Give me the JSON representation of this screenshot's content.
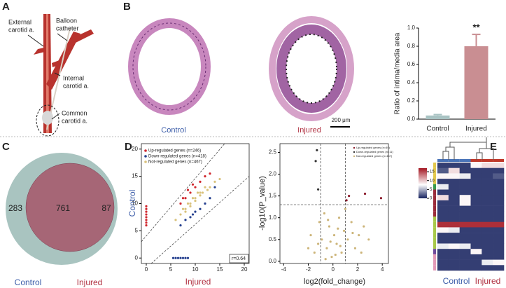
{
  "panel_labels": [
    "A",
    "B",
    "C",
    "D",
    "E"
  ],
  "diagram": {
    "labels": [
      [
        "External",
        "carotid a."
      ],
      [
        "Balloon",
        "catheter"
      ],
      [
        "Internal",
        "carotid a."
      ],
      [
        "Common",
        "carotid a."
      ]
    ]
  },
  "histology": {
    "labels": [
      "Control",
      "Injured"
    ],
    "scale_bar": "200 μm"
  },
  "bar_chart": {
    "type": "bar",
    "ylabel": "Ratio of intima/media area",
    "categories": [
      "Control",
      "Injured"
    ],
    "values": [
      0.04,
      0.8
    ],
    "errors": [
      0.01,
      0.13
    ],
    "colors": [
      "#a9c3c3",
      "#c98e92"
    ],
    "annotation": "**",
    "ylim": [
      0,
      1
    ],
    "yticks": [
      {
        "value": 0,
        "label": "0.0"
      },
      {
        "value": 0.2,
        "label": "0.2"
      },
      {
        "value": 0.4,
        "label": "0.4"
      },
      {
        "value": 0.6,
        "label": "0.6"
      },
      {
        "value": 0.8,
        "label": "0.8"
      },
      {
        "value": 1,
        "label": "1.0"
      }
    ]
  },
  "venn": {
    "sets": [
      {
        "name": "Control",
        "only": 283,
        "color": "#a9c4c0"
      },
      {
        "name": "Injured",
        "only": 87,
        "color": "#d8a5ab"
      }
    ],
    "both": 761,
    "both_color": "#9e5a6c"
  },
  "scatter": {
    "type": "scatter",
    "xlabel": "Injured",
    "ylabel": "Control",
    "annotation": "r=0.64",
    "xlim": [
      -1,
      21
    ],
    "ylim": [
      -1,
      21
    ],
    "xticks": [
      0,
      5,
      10,
      15,
      20
    ],
    "yticks": [
      0,
      5,
      10,
      15,
      20
    ],
    "series": [
      {
        "name": "Up-regulated genes (n=246)",
        "color": "#d0272e",
        "x": [
          0,
          0,
          0,
          0,
          0,
          0,
          0,
          0,
          7,
          8,
          9,
          10,
          8.5,
          11,
          12,
          9.5,
          13,
          7.5
        ],
        "y": [
          6,
          6.5,
          7,
          7.5,
          8,
          8.5,
          9,
          9.5,
          10,
          11,
          12,
          13,
          12.5,
          14,
          15,
          13.5,
          15.5,
          11
        ]
      },
      {
        "name": "Down-regulated genes (n=418)",
        "color": "#25408f",
        "x": [
          5.5,
          6,
          6.5,
          7,
          7.5,
          8,
          8.5,
          7,
          8,
          9,
          10,
          11,
          12,
          13,
          14,
          9.5
        ],
        "y": [
          0,
          0,
          0,
          0,
          0,
          0,
          0,
          6,
          7,
          7.5,
          8.5,
          9,
          10,
          11,
          13,
          8
        ]
      },
      {
        "name": "Not-regulated genes (n=467)",
        "color": "#d9c27c",
        "x": [
          6,
          7,
          7.5,
          8,
          8.5,
          9,
          9.5,
          10,
          10.5,
          11,
          11.5,
          12,
          12.5,
          13,
          14,
          15,
          8,
          9,
          10,
          11
        ],
        "y": [
          7,
          8,
          9,
          8.5,
          10,
          10,
          11,
          10.5,
          12,
          11.5,
          12,
          13,
          12.5,
          13,
          14,
          14.5,
          9,
          9.5,
          11,
          12
        ]
      }
    ]
  },
  "volcano": {
    "type": "scatter",
    "xlabel": "log2(fold_change)",
    "ylabel": "-log10(P_value)",
    "xlim": [
      -4.3,
      4.5
    ],
    "ylim": [
      -0.05,
      2.7
    ],
    "xticks": [
      -4,
      -2,
      0,
      2,
      4
    ],
    "yticks": [
      {
        "value": 0,
        "label": "0.0"
      },
      {
        "value": 0.5,
        "label": "0.5"
      },
      {
        "value": 1,
        "label": "1.0"
      },
      {
        "value": 1.5,
        "label": "1.5"
      },
      {
        "value": 2,
        "label": "2.0"
      },
      {
        "value": 2.5,
        "label": "2.5"
      }
    ],
    "thresholds": {
      "x": [
        -1,
        1
      ],
      "y": 1.3
    },
    "series": [
      {
        "name": "Up-regulated genes (n=49)",
        "color": "#8b1a2a",
        "x": [
          2.6,
          1.3,
          3.9,
          1.1
        ],
        "y": [
          1.55,
          1.5,
          1.45,
          1.4
        ]
      },
      {
        "name": "Down-regulated genes (n=11)",
        "color": "#333333",
        "x": [
          -1.3,
          -1.2,
          -1.4
        ],
        "y": [
          2.55,
          1.65,
          2.3
        ]
      },
      {
        "name": "Not-regulated genes (n=467)",
        "color": "#cdb57a",
        "x": [
          -2,
          -1.8,
          -1.5,
          -1.1,
          -0.9,
          -0.7,
          -0.5,
          -0.3,
          -0.1,
          0.1,
          0.3,
          0.5,
          0.7,
          0.9,
          1.2,
          1.5,
          1.8,
          2.1,
          2.5,
          2.9,
          -0.6,
          -0.2,
          0.2,
          0.6,
          1.0,
          -1.2,
          0.4,
          -0.4,
          1.6,
          2.3
        ],
        "y": [
          0.3,
          0.6,
          0.2,
          0.9,
          0.5,
          1.1,
          0.3,
          0.8,
          0.1,
          0.6,
          0.4,
          1.0,
          0.2,
          0.7,
          0.5,
          0.9,
          0.3,
          0.6,
          0.8,
          0.5,
          0.05,
          0.45,
          0.15,
          0.35,
          1.2,
          0.4,
          0.75,
          0.95,
          0.65,
          0.2
        ]
      }
    ]
  },
  "heatmap": {
    "labels": [
      "Control",
      "Injured"
    ],
    "colorbar_lim": [
      0,
      17
    ],
    "colorbar_ticks": [
      0,
      5,
      10,
      15
    ],
    "column_colors": [
      "#4a74b8",
      "#4a74b8",
      "#4a74b8",
      "#c0392b",
      "#c0392b",
      "#c0392b"
    ],
    "row_colors": [
      "#e3c84d",
      "#e3c84d",
      "#e3c84d",
      "#e3c84d",
      "#3a9a4c",
      "#9b2c3b",
      "#9b2c3b",
      "#9b2c3b",
      "#9b2c3b",
      "#9b2c3b",
      "#a8c94a",
      "#a8c94a",
      "#a8c94a",
      "#a8c94a",
      "#a8c94a",
      "#a8c94a",
      "#6f4a9b",
      "#e39ab8",
      "#e39ab8",
      "#e39ab8"
    ],
    "values": [
      [
        1,
        1,
        1,
        8,
        9,
        9
      ],
      [
        2,
        9,
        1,
        1,
        1,
        1
      ],
      [
        8,
        8,
        7,
        1,
        1,
        2
      ],
      [
        1,
        1,
        1,
        1,
        1,
        1
      ],
      [
        7,
        1,
        1,
        1,
        1,
        1
      ],
      [
        1,
        1,
        1,
        1,
        1,
        1
      ],
      [
        9,
        1,
        8,
        1,
        1,
        1
      ],
      [
        1,
        1,
        8,
        1,
        1,
        1
      ],
      [
        1,
        1,
        1,
        1,
        1,
        1
      ],
      [
        1,
        1,
        1,
        1,
        1,
        1
      ],
      [
        1,
        1,
        1,
        1,
        1,
        1
      ],
      [
        16,
        16,
        16,
        16,
        16,
        16
      ],
      [
        8,
        7,
        1,
        1,
        1,
        1
      ],
      [
        1,
        1,
        1,
        1,
        1,
        1
      ],
      [
        1,
        1,
        1,
        1,
        1,
        1
      ],
      [
        7,
        8,
        7,
        1,
        1,
        1
      ],
      [
        1,
        1,
        1,
        8,
        1,
        1
      ],
      [
        1,
        1,
        1,
        1,
        1,
        1
      ],
      [
        1,
        1,
        1,
        1,
        7,
        8
      ],
      [
        1,
        1,
        1,
        1,
        1,
        1
      ]
    ]
  }
}
